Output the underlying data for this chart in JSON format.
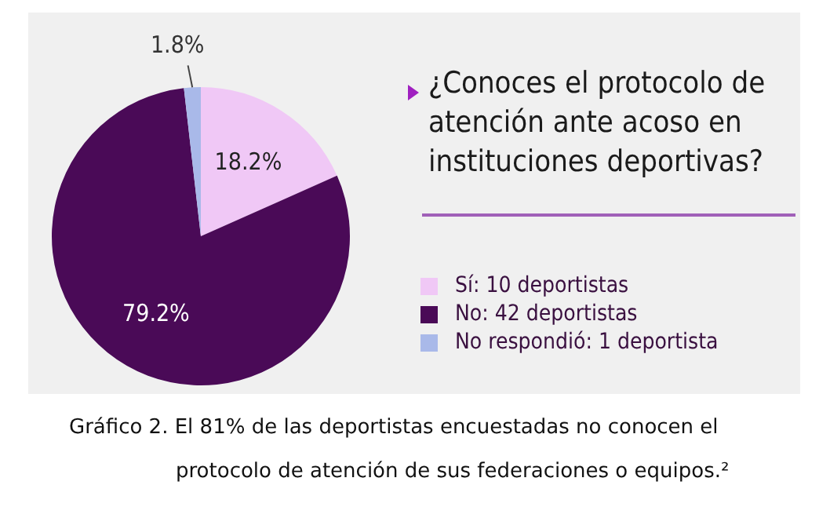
{
  "chart_data": {
    "type": "pie",
    "title": "¿Conoces el protocolo de atención ante acoso en instituciones deportivas?",
    "categories": [
      "Sí: 10 deportistas",
      "No: 42 deportistas",
      "No respondió: 1 deportista"
    ],
    "values": [
      18.2,
      79.2,
      1.8
    ],
    "colors": [
      "#f0c8f6",
      "#4a0a57",
      "#a9b9e9"
    ],
    "value_labels": [
      "18.2%",
      "79.2%",
      "1.8%"
    ],
    "legend": "right",
    "annotations": [
      "Gráfico 2. El 81% de las deportistas encuestadas no conocen el protocolo de atención de sus federaciones o equipos.²"
    ]
  }
}
